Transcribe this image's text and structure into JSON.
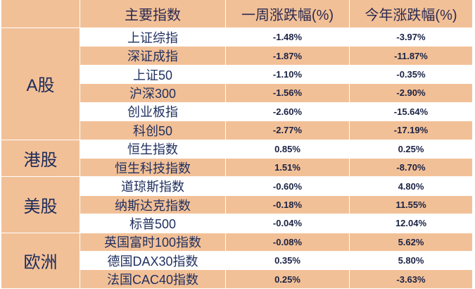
{
  "header": {
    "col_region": "",
    "col_index": "主要指数",
    "col_week": "一周涨跌幅(%)",
    "col_ytd": "今年涨跌幅(%)"
  },
  "regions": [
    {
      "label": "A股"
    },
    {
      "label": "港股"
    },
    {
      "label": "美股"
    },
    {
      "label": "欧洲"
    }
  ],
  "rows": [
    {
      "name": "上证综指",
      "week": "-1.48%",
      "ytd": "-3.97%"
    },
    {
      "name": "深证成指",
      "week": "-1.87%",
      "ytd": "-11.87%"
    },
    {
      "name": "上证50",
      "week": "-1.10%",
      "ytd": "-0.35%"
    },
    {
      "name": "沪深300",
      "week": "-1.56%",
      "ytd": "-2.90%"
    },
    {
      "name": "创业板指",
      "week": "-2.60%",
      "ytd": "-15.64%"
    },
    {
      "name": "科创50",
      "week": "-2.77%",
      "ytd": "-17.19%"
    },
    {
      "name": "恒生指数",
      "week": "0.85%",
      "ytd": "0.25%"
    },
    {
      "name": "恒生科技指数",
      "week": "1.51%",
      "ytd": "-8.70%"
    },
    {
      "name": "道琼斯指数",
      "week": "-0.60%",
      "ytd": "4.80%"
    },
    {
      "name": "纳斯达克指数",
      "week": "-0.18%",
      "ytd": "11.55%"
    },
    {
      "name": "标普500",
      "week": "-0.04%",
      "ytd": "12.04%"
    },
    {
      "name": "英国富时100指数",
      "week": "-0.08%",
      "ytd": "5.62%"
    },
    {
      "name": "德国DAX30指数",
      "week": "0.35%",
      "ytd": "5.80%"
    },
    {
      "name": "法国CAC40指数",
      "week": "0.25%",
      "ytd": "-3.63%"
    }
  ],
  "colors": {
    "accent": "#f2c097",
    "text": "#1a2a5a"
  }
}
